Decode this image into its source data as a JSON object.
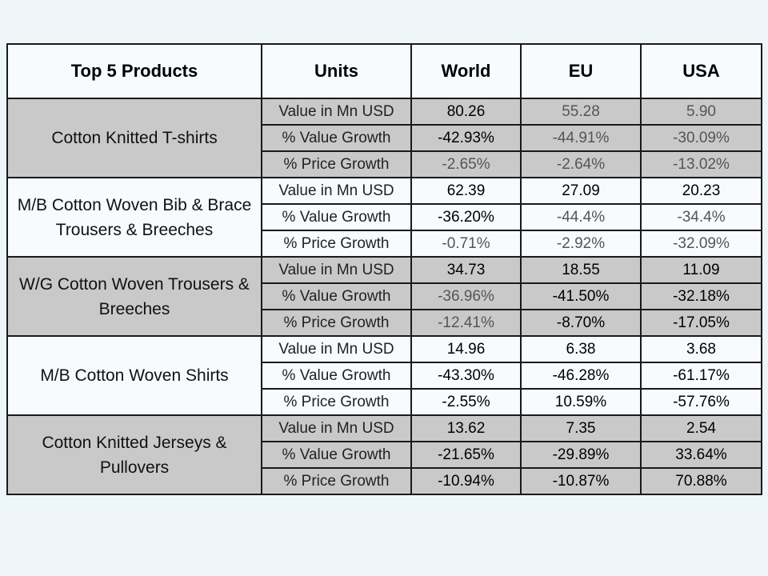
{
  "table": {
    "headers": [
      "Top 5 Products",
      "Units",
      "World",
      "EU",
      "USA"
    ],
    "groups": [
      {
        "product": "Cotton Knitted  T-shirts",
        "rows": [
          {
            "unit": "Value in Mn USD",
            "world": "80.26",
            "eu": "55.28",
            "usa": "5.90"
          },
          {
            "unit": "% Value Growth",
            "world": "-42.93%",
            "eu": "-44.91%",
            "usa": "-30.09%"
          },
          {
            "unit": "% Price Growth",
            "world": "-2.65%",
            "eu": "-2.64%",
            "usa": "-13.02%"
          }
        ]
      },
      {
        "product": "M/B Cotton Woven Bib & Brace Trousers & Breeches",
        "rows": [
          {
            "unit": "Value in Mn USD",
            "world": "62.39",
            "eu": "27.09",
            "usa": "20.23"
          },
          {
            "unit": "% Value Growth",
            "world": "-36.20%",
            "eu": "-44.4%",
            "usa": "-34.4%"
          },
          {
            "unit": "% Price Growth",
            "world": "-0.71%",
            "eu": "-2.92%",
            "usa": "-32.09%"
          }
        ]
      },
      {
        "product": "W/G Cotton Woven  Trousers & Breeches",
        "rows": [
          {
            "unit": "Value in Mn USD",
            "world": "34.73",
            "eu": "18.55",
            "usa": "11.09"
          },
          {
            "unit": "% Value Growth",
            "world": "-36.96%",
            "eu": "-41.50%",
            "usa": "-32.18%"
          },
          {
            "unit": "% Price Growth",
            "world": "-12.41%",
            "eu": "-8.70%",
            "usa": "-17.05%"
          }
        ]
      },
      {
        "product": "M/B Cotton Woven  Shirts",
        "rows": [
          {
            "unit": "Value in Mn USD",
            "world": "14.96",
            "eu": "6.38",
            "usa": "3.68"
          },
          {
            "unit": "% Value Growth",
            "world": "-43.30%",
            "eu": "-46.28%",
            "usa": "-61.17%"
          },
          {
            "unit": "% Price Growth",
            "world": "-2.55%",
            "eu": "10.59%",
            "usa": "-57.76%"
          }
        ]
      },
      {
        "product": "Cotton Knitted  Jerseys & Pullovers",
        "rows": [
          {
            "unit": "Value in Mn USD",
            "world": "13.62",
            "eu": "7.35",
            "usa": "2.54"
          },
          {
            "unit": "% Value Growth",
            "world": "-21.65%",
            "eu": "-29.89%",
            "usa": "33.64%"
          },
          {
            "unit": "% Price Growth",
            "world": "-10.94%",
            "eu": "-10.87%",
            "usa": "70.88%"
          }
        ]
      }
    ]
  },
  "colors": {
    "background": "#eef6fa",
    "shaded_row": "#c9c9c9",
    "plain_row": "#f7fbfd",
    "border": "#1a1a1a"
  }
}
